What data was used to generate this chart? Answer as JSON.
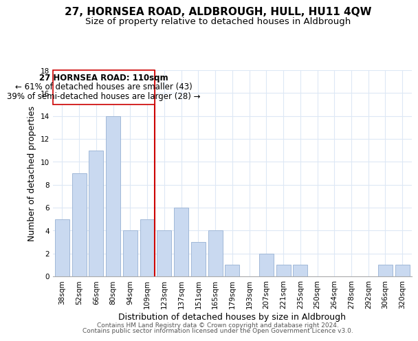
{
  "title": "27, HORNSEA ROAD, ALDBROUGH, HULL, HU11 4QW",
  "subtitle": "Size of property relative to detached houses in Aldbrough",
  "xlabel": "Distribution of detached houses by size in Aldbrough",
  "ylabel": "Number of detached properties",
  "bar_labels": [
    "38sqm",
    "52sqm",
    "66sqm",
    "80sqm",
    "94sqm",
    "109sqm",
    "123sqm",
    "137sqm",
    "151sqm",
    "165sqm",
    "179sqm",
    "193sqm",
    "207sqm",
    "221sqm",
    "235sqm",
    "250sqm",
    "264sqm",
    "278sqm",
    "292sqm",
    "306sqm",
    "320sqm"
  ],
  "bar_values": [
    5,
    9,
    11,
    14,
    4,
    5,
    4,
    6,
    3,
    4,
    1,
    0,
    2,
    1,
    1,
    0,
    0,
    0,
    0,
    1,
    1
  ],
  "bar_color": "#c9d9f0",
  "bar_edge_color": "#a0b8d8",
  "highlight_index": 5,
  "highlight_line_color": "#cc0000",
  "ylim": [
    0,
    18
  ],
  "yticks": [
    0,
    2,
    4,
    6,
    8,
    10,
    12,
    14,
    16,
    18
  ],
  "annotation_title": "27 HORNSEA ROAD: 110sqm",
  "annotation_line1": "← 61% of detached houses are smaller (43)",
  "annotation_line2": "39% of semi-detached houses are larger (28) →",
  "footer1": "Contains HM Land Registry data © Crown copyright and database right 2024.",
  "footer2": "Contains public sector information licensed under the Open Government Licence v3.0.",
  "title_fontsize": 11,
  "subtitle_fontsize": 9.5,
  "axis_label_fontsize": 9,
  "tick_fontsize": 7.5,
  "annotation_fontsize": 8.5,
  "footer_fontsize": 6.5,
  "bg_color": "#ffffff",
  "grid_color": "#dde8f5"
}
